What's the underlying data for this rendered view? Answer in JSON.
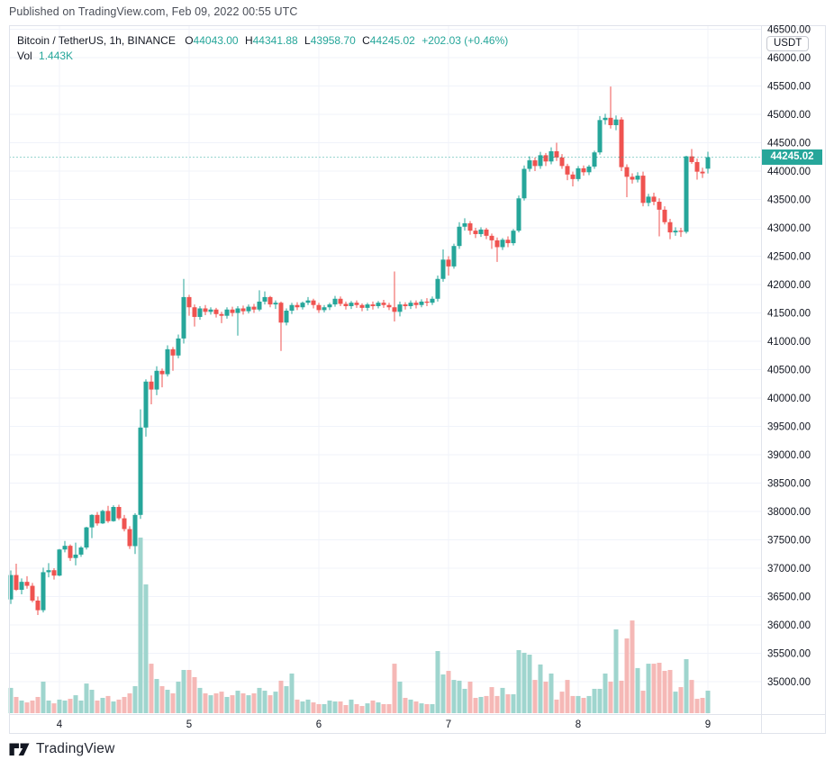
{
  "header": {
    "published_line": "Published on TradingView.com, Feb 09, 2022 00:55 UTC"
  },
  "legend": {
    "symbol_line": "Bitcoin / TetherUS, 1h, BINANCE",
    "o_label": "O",
    "o": "44043.00",
    "h_label": "H",
    "h": "44341.88",
    "l_label": "L",
    "l": "43958.70",
    "c_label": "C",
    "c": "44245.02",
    "change": "+202.03 (+0.46%)",
    "vol_label": "Vol",
    "vol": "1.443K"
  },
  "axis": {
    "currency_badge": "USDT",
    "last_price_label": "44245.02",
    "price_labels": [
      "46500.00",
      "46000.00",
      "45500.00",
      "45000.00",
      "44500.00",
      "44000.00",
      "43500.00",
      "43000.00",
      "42500.00",
      "42000.00",
      "41500.00",
      "41000.00",
      "40500.00",
      "40000.00",
      "39500.00",
      "39000.00",
      "38500.00",
      "38000.00",
      "37500.00",
      "37000.00",
      "36500.00",
      "36000.00",
      "35500.00",
      "35000.00"
    ],
    "time_labels": [
      "4",
      "5",
      "6",
      "7",
      "8",
      "9"
    ]
  },
  "footer": {
    "brand": "TradingView"
  },
  "colors": {
    "up": "#26a69a",
    "down": "#ef5350",
    "vol_up": "#9fd5ce",
    "vol_down": "#f5b8b6",
    "grid": "#f0f3fa",
    "border": "#e0e3eb",
    "text": "#131722",
    "accent": "#26a69a"
  },
  "chart_data": {
    "type": "candlestick",
    "title": "Bitcoin / TetherUS, 1h, BINANCE",
    "interval": "1h",
    "start_time": "Feb 3, 2022 15:00 UTC",
    "end_time": "Feb 9, 2022 00:00 UTC",
    "ylim": [
      34750,
      46700
    ],
    "price_tick_step": 500,
    "day_start_indices": [
      9,
      33,
      57,
      81,
      105,
      129
    ],
    "day_labels": [
      "4",
      "5",
      "6",
      "7",
      "8",
      "9"
    ],
    "last_bar": {
      "open": "44043.00",
      "high": "44341.88",
      "low": "43958.70",
      "close": "44245.02",
      "change": "+202.03 (+0.46%)",
      "volume": "1.443K"
    },
    "last_close": 44245.02,
    "candles": [
      [
        36450,
        36960,
        36370,
        36880
      ],
      [
        36880,
        37080,
        36600,
        36620
      ],
      [
        36620,
        36820,
        36540,
        36760
      ],
      [
        36760,
        36860,
        36640,
        36690
      ],
      [
        36690,
        36740,
        36400,
        36430
      ],
      [
        36430,
        36500,
        36175,
        36260
      ],
      [
        36260,
        37010,
        36220,
        36930
      ],
      [
        36930,
        37090,
        36840,
        36965
      ],
      [
        36965,
        37000,
        36800,
        36870
      ],
      [
        36870,
        37340,
        36860,
        37330
      ],
      [
        37330,
        37480,
        37280,
        37395
      ],
      [
        37395,
        37420,
        37130,
        37180
      ],
      [
        37180,
        37450,
        37050,
        37240
      ],
      [
        37240,
        37390,
        37200,
        37365
      ],
      [
        37365,
        37730,
        37330,
        37720
      ],
      [
        37720,
        37950,
        37530,
        37940
      ],
      [
        37940,
        37990,
        37750,
        37790
      ],
      [
        37790,
        38030,
        37780,
        38010
      ],
      [
        38010,
        38100,
        37800,
        37830
      ],
      [
        37830,
        38110,
        37820,
        38080
      ],
      [
        38080,
        38120,
        37850,
        37880
      ],
      [
        37880,
        37940,
        37650,
        37690
      ],
      [
        37690,
        37740,
        37340,
        37390
      ],
      [
        37390,
        37970,
        37250,
        37940
      ],
      [
        37940,
        39800,
        37870,
        39480
      ],
      [
        39480,
        40330,
        39320,
        40290
      ],
      [
        40290,
        40400,
        39890,
        40150
      ],
      [
        40150,
        40560,
        40050,
        40480
      ],
      [
        40480,
        40520,
        40190,
        40420
      ],
      [
        40420,
        40930,
        40380,
        40860
      ],
      [
        40860,
        40900,
        40480,
        40750
      ],
      [
        40750,
        41120,
        40700,
        41050
      ],
      [
        41050,
        42100,
        40960,
        41780
      ],
      [
        41780,
        41820,
        41450,
        41600
      ],
      [
        41600,
        41650,
        41260,
        41430
      ],
      [
        41430,
        41620,
        41380,
        41580
      ],
      [
        41580,
        41640,
        41460,
        41520
      ],
      [
        41520,
        41600,
        41470,
        41560
      ],
      [
        41560,
        41590,
        41420,
        41480
      ],
      [
        41480,
        41520,
        41320,
        41450
      ],
      [
        41450,
        41600,
        41400,
        41560
      ],
      [
        41560,
        41610,
        41440,
        41500
      ],
      [
        41500,
        41620,
        41100,
        41580
      ],
      [
        41580,
        41630,
        41470,
        41530
      ],
      [
        41530,
        41650,
        41490,
        41610
      ],
      [
        41610,
        41660,
        41500,
        41560
      ],
      [
        41560,
        41900,
        41530,
        41700
      ],
      [
        41700,
        41880,
        41650,
        41780
      ],
      [
        41780,
        41800,
        41600,
        41650
      ],
      [
        41650,
        41720,
        41570,
        41680
      ],
      [
        41680,
        41700,
        40830,
        41330
      ],
      [
        41330,
        41580,
        41280,
        41540
      ],
      [
        41540,
        41680,
        41480,
        41640
      ],
      [
        41640,
        41690,
        41550,
        41600
      ],
      [
        41600,
        41700,
        41560,
        41680
      ],
      [
        41680,
        41780,
        41640,
        41720
      ],
      [
        41720,
        41750,
        41580,
        41640
      ],
      [
        41640,
        41680,
        41500,
        41550
      ],
      [
        41550,
        41640,
        41510,
        41600
      ],
      [
        41600,
        41680,
        41550,
        41650
      ],
      [
        41650,
        41800,
        41610,
        41750
      ],
      [
        41750,
        41790,
        41620,
        41660
      ],
      [
        41660,
        41700,
        41560,
        41620
      ],
      [
        41620,
        41710,
        41570,
        41680
      ],
      [
        41680,
        41720,
        41590,
        41640
      ],
      [
        41640,
        41670,
        41530,
        41590
      ],
      [
        41590,
        41680,
        41540,
        41650
      ],
      [
        41650,
        41700,
        41560,
        41620
      ],
      [
        41620,
        41710,
        41580,
        41680
      ],
      [
        41680,
        41730,
        41590,
        41640
      ],
      [
        41640,
        41680,
        41550,
        41600
      ],
      [
        41600,
        42230,
        41350,
        41520
      ],
      [
        41520,
        41700,
        41440,
        41650
      ],
      [
        41650,
        41690,
        41560,
        41620
      ],
      [
        41620,
        41720,
        41570,
        41680
      ],
      [
        41680,
        41720,
        41580,
        41640
      ],
      [
        41640,
        41740,
        41600,
        41700
      ],
      [
        41700,
        41760,
        41620,
        41680
      ],
      [
        41680,
        41790,
        41640,
        41750
      ],
      [
        41750,
        42160,
        41700,
        42100
      ],
      [
        42100,
        42620,
        42050,
        42440
      ],
      [
        42440,
        42500,
        42160,
        42320
      ],
      [
        42320,
        42720,
        42280,
        42680
      ],
      [
        42680,
        43100,
        42630,
        43020
      ],
      [
        43020,
        43170,
        42950,
        43080
      ],
      [
        43080,
        43120,
        42880,
        42950
      ],
      [
        42950,
        43000,
        42820,
        42890
      ],
      [
        42890,
        43010,
        42840,
        42970
      ],
      [
        42970,
        43000,
        42800,
        42860
      ],
      [
        42860,
        42900,
        42630,
        42780
      ],
      [
        42780,
        42830,
        42400,
        42660
      ],
      [
        42660,
        42820,
        42610,
        42790
      ],
      [
        42790,
        42850,
        42660,
        42730
      ],
      [
        42730,
        42980,
        42690,
        42950
      ],
      [
        42950,
        43570,
        42920,
        43520
      ],
      [
        43520,
        44100,
        43480,
        44040
      ],
      [
        44040,
        44260,
        43990,
        44190
      ],
      [
        44190,
        44240,
        44000,
        44090
      ],
      [
        44090,
        44340,
        44040,
        44280
      ],
      [
        44280,
        44320,
        44090,
        44170
      ],
      [
        44170,
        44420,
        44120,
        44350
      ],
      [
        44350,
        44500,
        44180,
        44240
      ],
      [
        44240,
        44300,
        44040,
        44090
      ],
      [
        44090,
        44130,
        43840,
        43940
      ],
      [
        43940,
        43990,
        43730,
        43860
      ],
      [
        43860,
        44090,
        43820,
        44050
      ],
      [
        44050,
        44100,
        43920,
        43980
      ],
      [
        43980,
        44110,
        43930,
        44080
      ],
      [
        44080,
        44360,
        44040,
        44330
      ],
      [
        44330,
        44970,
        44290,
        44900
      ],
      [
        44900,
        45010,
        44820,
        44940
      ],
      [
        44940,
        45490,
        44750,
        44810
      ],
      [
        44810,
        44980,
        44720,
        44910
      ],
      [
        44910,
        44950,
        44000,
        44070
      ],
      [
        44070,
        44120,
        43540,
        43900
      ],
      [
        43900,
        43960,
        43780,
        43850
      ],
      [
        43850,
        43980,
        43800,
        43920
      ],
      [
        43920,
        43990,
        43380,
        43440
      ],
      [
        43440,
        43600,
        43380,
        43550
      ],
      [
        43550,
        43620,
        43400,
        43460
      ],
      [
        43460,
        43520,
        42850,
        43320
      ],
      [
        43320,
        43380,
        43060,
        43100
      ],
      [
        43100,
        43160,
        42800,
        42920
      ],
      [
        42920,
        43010,
        42860,
        42950
      ],
      [
        42950,
        43000,
        42840,
        42930
      ],
      [
        42930,
        44270,
        42900,
        44260
      ],
      [
        44260,
        44390,
        44130,
        44160
      ],
      [
        44160,
        44220,
        43850,
        43990
      ],
      [
        43990,
        44060,
        43880,
        43960
      ],
      [
        44043,
        44341.88,
        43958.7,
        44245.02
      ]
    ],
    "volumes_k": [
      1.62,
      1.04,
      0.81,
      0.69,
      0.81,
      1.04,
      2.02,
      0.81,
      0.63,
      0.87,
      0.81,
      0.92,
      1.15,
      0.81,
      1.9,
      1.5,
      0.81,
      0.98,
      1.1,
      0.75,
      0.87,
      1.04,
      1.27,
      1.73,
      11.25,
      8.25,
      3.17,
      2.19,
      1.73,
      1.5,
      1.27,
      2.02,
      2.77,
      2.77,
      2.31,
      1.62,
      1.27,
      1.15,
      1.27,
      1.38,
      1.04,
      1.15,
      1.44,
      1.27,
      1.15,
      1.27,
      1.62,
      1.44,
      1.15,
      1.38,
      2.08,
      1.73,
      2.54,
      0.87,
      0.75,
      0.87,
      0.69,
      0.58,
      0.58,
      0.81,
      0.75,
      0.75,
      0.52,
      0.87,
      0.58,
      0.46,
      0.63,
      0.81,
      0.69,
      0.58,
      0.58,
      3.17,
      2.02,
      0.98,
      0.87,
      0.75,
      0.63,
      0.58,
      0.58,
      3.98,
      2.48,
      2.71,
      2.13,
      2.08,
      1.56,
      2.02,
      0.98,
      1.04,
      1.1,
      1.67,
      1.1,
      1.62,
      1.21,
      1.21,
      4.04,
      3.87,
      3.75,
      2.13,
      3.12,
      2.02,
      2.54,
      0.87,
      1.38,
      2.13,
      1.1,
      1.1,
      0.98,
      1.1,
      1.56,
      1.56,
      2.54,
      2.02,
      5.37,
      2.08,
      4.79,
      5.94,
      2.89,
      1.44,
      3.17,
      3.17,
      3.23,
      2.71,
      2.77,
      1.38,
      1.67,
      3.46,
      2.13,
      0.92,
      0.98,
      1.44
    ]
  }
}
